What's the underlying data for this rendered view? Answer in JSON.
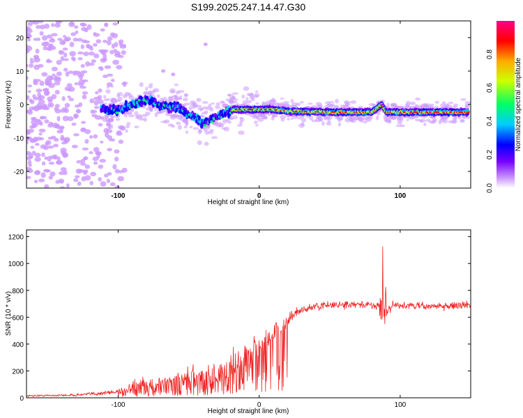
{
  "title": "S199.2025.247.14.47.G30",
  "chart_data": [
    {
      "type": "heatmap",
      "name": "spectrogram",
      "xlabel": "Height of straight line (km)",
      "ylabel": "Frequency (Hz)",
      "xlim": [
        -165,
        150
      ],
      "ylim": [
        -25,
        25
      ],
      "xticks": [
        -100,
        0,
        100
      ],
      "yticks": [
        -20,
        -10,
        0,
        10,
        20
      ],
      "colorbar": {
        "label": "Normalized spectral amplitude",
        "range": [
          0,
          1
        ],
        "ticks": [
          "0.0",
          "0.2",
          "0.4",
          "0.6",
          "0.8"
        ],
        "colors": [
          "#ffffff",
          "#cc99ff",
          "#7700ff",
          "#0000ff",
          "#00ccff",
          "#00ff66",
          "#ccff00",
          "#ffaa00",
          "#ff0000",
          "#ff0088"
        ]
      },
      "ridge_frequency_hz": {
        "x": [
          -100,
          -90,
          -80,
          -70,
          -60,
          -50,
          -40,
          -30,
          -20,
          -10,
          0,
          10,
          20,
          40,
          60,
          80,
          87,
          90,
          100,
          120,
          150
        ],
        "y": [
          -1.5,
          0,
          1.5,
          0,
          -1,
          -3,
          -5.5,
          -4,
          -1.5,
          -1.5,
          -1.5,
          -1.5,
          -2,
          -2.2,
          -2.3,
          -2.3,
          0,
          -2.3,
          -2.3,
          -2.3,
          -2.3
        ]
      }
    },
    {
      "type": "line",
      "name": "snr",
      "xlabel": "Height of straight line (km)",
      "ylabel": "SNR (10 * v/v)",
      "xlim": [
        -165,
        150
      ],
      "ylim": [
        0,
        1250
      ],
      "xticks": [
        -100,
        0,
        100
      ],
      "yticks": [
        0,
        200,
        400,
        600,
        800,
        1000,
        1200
      ],
      "color": "#ee2222",
      "envelope": {
        "x": [
          -165,
          -130,
          -105,
          -95,
          -85,
          -75,
          -65,
          -55,
          -45,
          -35,
          -25,
          -15,
          -5,
          5,
          15,
          25,
          35,
          50,
          70,
          85,
          88,
          92,
          100,
          120,
          150
        ],
        "mean": [
          15,
          20,
          40,
          60,
          80,
          100,
          120,
          140,
          160,
          175,
          180,
          260,
          340,
          420,
          520,
          620,
          670,
          690,
          690,
          690,
          700,
          680,
          690,
          680,
          690
        ],
        "noise": [
          8,
          10,
          25,
          40,
          70,
          85,
          90,
          100,
          110,
          120,
          125,
          140,
          150,
          120,
          90,
          45,
          35,
          35,
          35,
          35,
          480,
          45,
          40,
          35,
          35
        ]
      }
    }
  ]
}
